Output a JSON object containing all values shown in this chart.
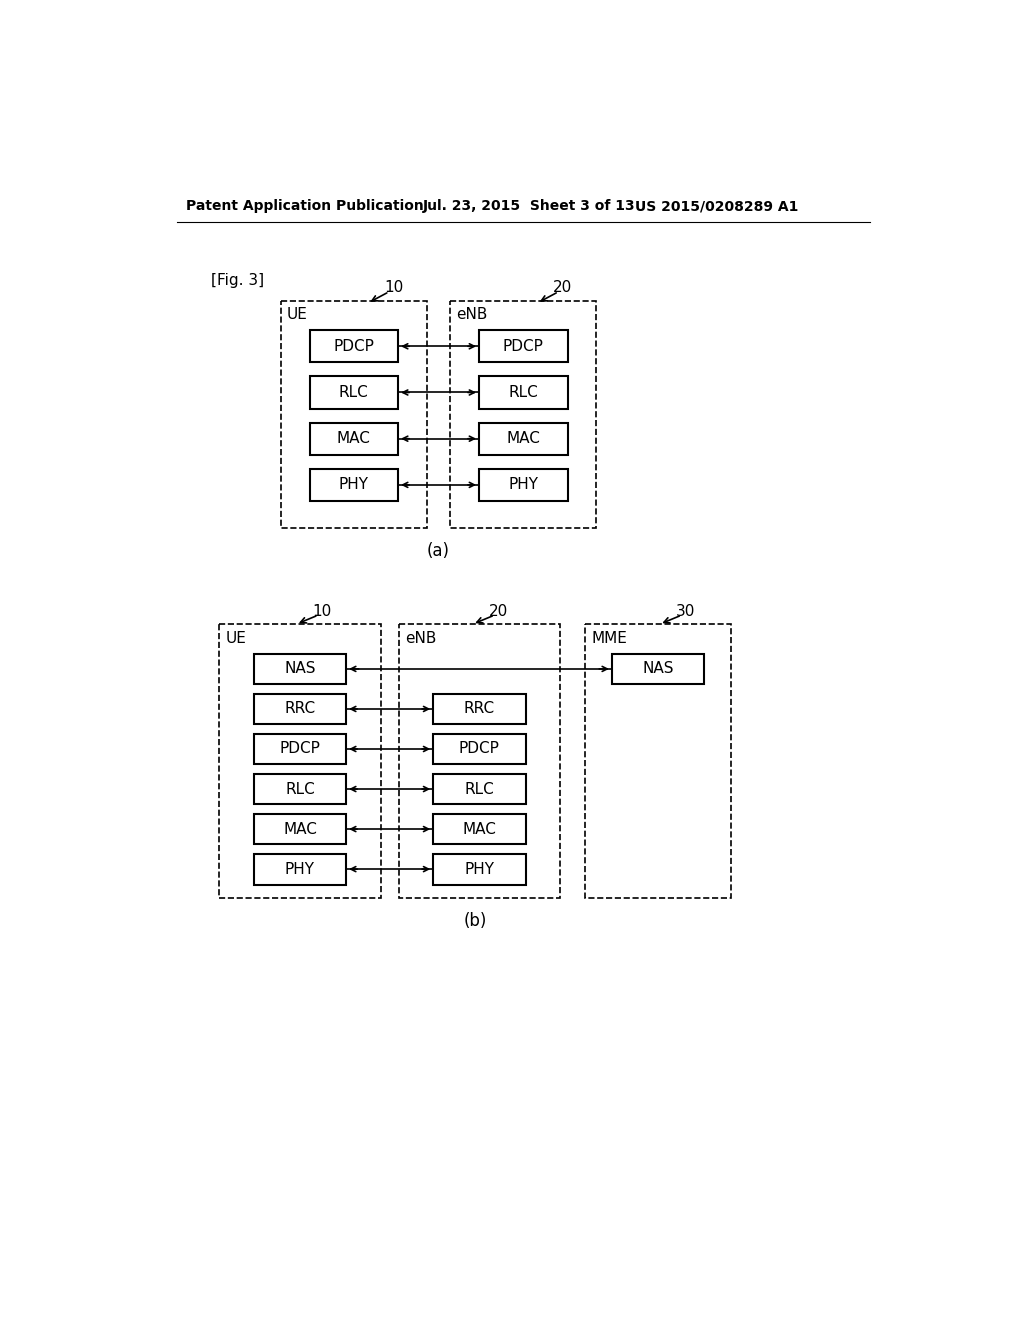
{
  "bg_color": "#ffffff",
  "header_text": "Patent Application Publication",
  "header_date": "Jul. 23, 2015  Sheet 3 of 13",
  "header_patent": "US 2015/0208289 A1",
  "fig_label": "[Fig. 3]",
  "diagram_a": {
    "label": "(a)",
    "ue_label": "UE",
    "ue_num": "10",
    "enb_label": "eNB",
    "enb_num": "20",
    "layers": [
      "PDCP",
      "RLC",
      "MAC",
      "PHY"
    ]
  },
  "diagram_b": {
    "label": "(b)",
    "ue_label": "UE",
    "ue_num": "10",
    "enb_label": "eNB",
    "enb_num": "20",
    "mme_label": "MME",
    "mme_num": "30",
    "ue_layers": [
      "NAS",
      "RRC",
      "PDCP",
      "RLC",
      "MAC",
      "PHY"
    ],
    "enb_layers": [
      "RRC",
      "PDCP",
      "RLC",
      "MAC",
      "PHY"
    ],
    "mme_layers": [
      "NAS"
    ]
  }
}
